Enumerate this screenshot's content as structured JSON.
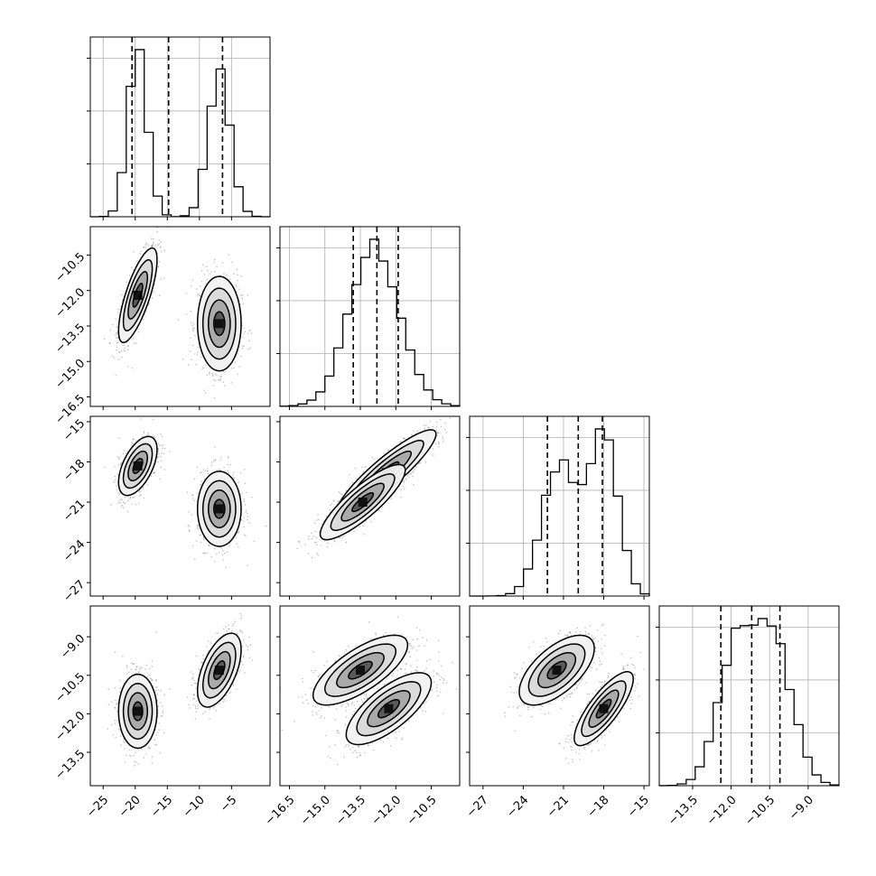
{
  "chart_data": {
    "type": "corner",
    "n_params": 4,
    "grid": true,
    "title": "",
    "parameters": [
      {
        "name": "",
        "range": [
          -27,
          1
        ],
        "ticks": [
          -25,
          -20,
          -15,
          -10,
          -5
        ],
        "tick_labels": [
          "−25",
          "−20",
          "−15",
          "−10",
          "−5"
        ],
        "quantiles": [
          -20.5,
          -14.8,
          -6.4
        ],
        "modes": [
          {
            "mu": -19.6,
            "sd": 1.5,
            "w": 0.5
          },
          {
            "mu": -6.9,
            "sd": 1.7,
            "w": 0.5
          }
        ]
      },
      {
        "name": "",
        "range": [
          -16.9,
          -9.3
        ],
        "ticks": [
          -16.5,
          -15.0,
          -13.5,
          -12.0,
          -10.5
        ],
        "tick_labels": [
          "−16.5",
          "−15.0",
          "−13.5",
          "−12.0",
          "−10.5"
        ],
        "quantiles": [
          -13.8,
          -12.8,
          -11.9
        ],
        "modes": [
          {
            "mu": -12.9,
            "sd": 1.05,
            "w": 1.0
          }
        ]
      },
      {
        "name": "",
        "range": [
          -28,
          -14.6
        ],
        "ticks": [
          -27,
          -24,
          -21,
          -18,
          -15
        ],
        "tick_labels": [
          "−27",
          "−24",
          "−21",
          "−18",
          "−15"
        ],
        "quantiles": [
          -22.2,
          -19.9,
          -18.1
        ],
        "modes": [
          {
            "mu": -21.3,
            "sd": 1.3,
            "w": 0.5
          },
          {
            "mu": -18.0,
            "sd": 1.05,
            "w": 0.5
          }
        ]
      },
      {
        "name": "",
        "range": [
          -14.8,
          -7.8
        ],
        "ticks": [
          -13.5,
          -12.0,
          -10.5,
          -9.0
        ],
        "tick_labels": [
          "−13.5",
          "−12.0",
          "−10.5",
          "−9.0"
        ],
        "quantiles": [
          -12.4,
          -11.2,
          -10.1
        ],
        "modes": [
          {
            "mu": -11.8,
            "sd": 0.72,
            "w": 0.5
          },
          {
            "mu": -10.3,
            "sd": 0.72,
            "w": 0.5
          }
        ]
      }
    ],
    "hist_bins": 20,
    "pair_clusters": [
      {
        "row": 1,
        "col": 0,
        "clusters": [
          {
            "mx": -19.6,
            "my": -12.2,
            "sx": 1.5,
            "sy": 1.0,
            "rho": 0.75
          },
          {
            "mx": -6.9,
            "my": -13.4,
            "sx": 1.7,
            "sy": 1.0,
            "rho": 0.0
          }
        ]
      },
      {
        "row": 2,
        "col": 0,
        "clusters": [
          {
            "mx": -19.6,
            "my": -18.3,
            "sx": 1.5,
            "sy": 1.1,
            "rho": 0.55
          },
          {
            "mx": -6.9,
            "my": -21.5,
            "sx": 1.7,
            "sy": 1.4,
            "rho": 0.0
          }
        ]
      },
      {
        "row": 2,
        "col": 1,
        "clusters": [
          {
            "mx": -12.4,
            "my": -18.8,
            "sx": 1.05,
            "sy": 1.6,
            "rho": 0.9
          },
          {
            "mx": -13.4,
            "my": -21.0,
            "sx": 0.9,
            "sy": 1.4,
            "rho": 0.85
          }
        ]
      },
      {
        "row": 3,
        "col": 0,
        "clusters": [
          {
            "mx": -19.6,
            "my": -11.9,
            "sx": 1.5,
            "sy": 0.72,
            "rho": 0.0
          },
          {
            "mx": -6.9,
            "my": -10.3,
            "sx": 1.7,
            "sy": 0.72,
            "rho": 0.55
          }
        ]
      },
      {
        "row": 3,
        "col": 1,
        "clusters": [
          {
            "mx": -13.5,
            "my": -10.3,
            "sx": 1.0,
            "sy": 0.68,
            "rho": 0.72
          },
          {
            "mx": -12.3,
            "my": -11.8,
            "sx": 0.9,
            "sy": 0.7,
            "rho": 0.72
          }
        ]
      },
      {
        "row": 3,
        "col": 2,
        "clusters": [
          {
            "mx": -21.5,
            "my": -10.3,
            "sx": 1.4,
            "sy": 0.68,
            "rho": 0.62
          },
          {
            "mx": -18.0,
            "my": -11.8,
            "sx": 1.1,
            "sy": 0.72,
            "rho": 0.8
          }
        ]
      }
    ],
    "contour_levels_sigma": [
      0.5,
      1.0,
      1.5,
      2.0
    ]
  }
}
